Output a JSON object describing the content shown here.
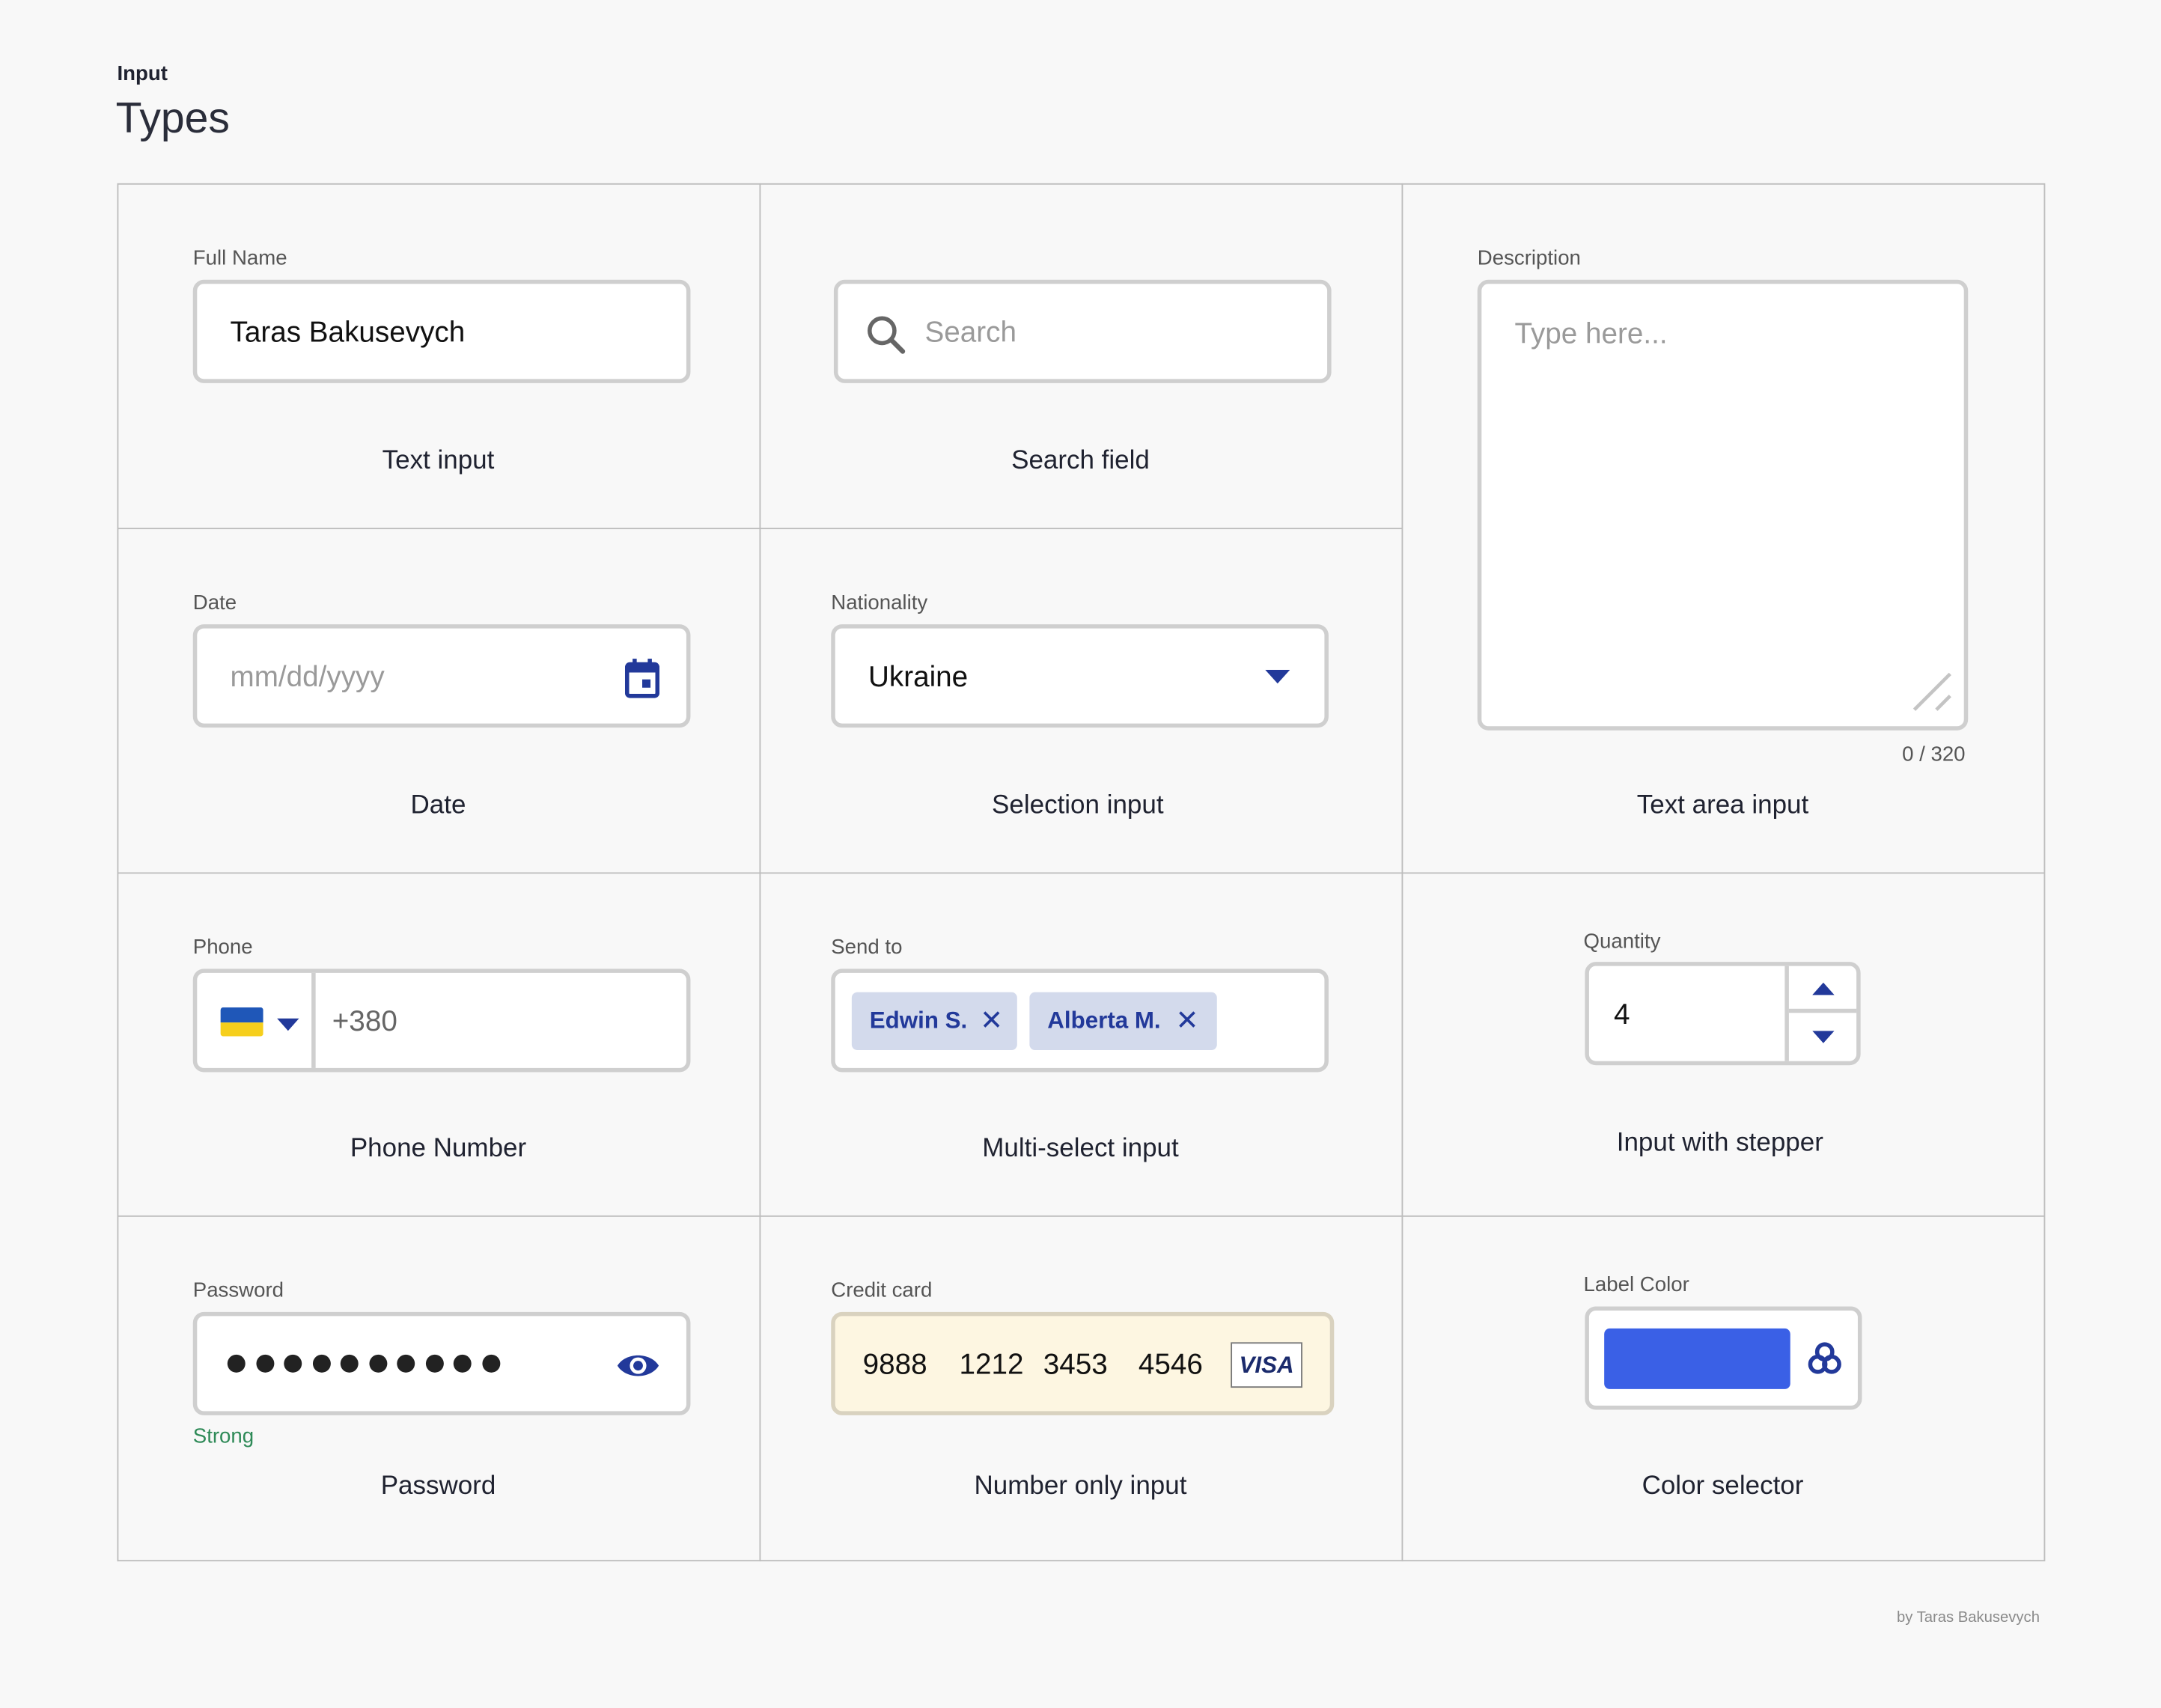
{
  "header": {
    "eyebrow": "Input",
    "title": "Types"
  },
  "cells": {
    "text_input": {
      "label": "Full Name",
      "value": "Taras Bakusevych",
      "caption": "Text input"
    },
    "search": {
      "placeholder": "Search",
      "caption": "Search field",
      "icon": "search-icon"
    },
    "textarea": {
      "label": "Description",
      "placeholder": "Type here...",
      "counter": "0 / 320",
      "caption": "Text area input"
    },
    "date": {
      "label": "Date",
      "placeholder": "mm/dd/yyyy",
      "caption": "Date",
      "icon": "calendar-icon"
    },
    "selection": {
      "label": "Nationality",
      "value": "Ukraine",
      "caption": "Selection input"
    },
    "phone": {
      "label": "Phone",
      "flag": "ukraine-flag",
      "value": "+380",
      "caption": "Phone Number"
    },
    "multiselect": {
      "label": "Send to",
      "chips": [
        "Edwin S.",
        "Alberta M."
      ],
      "caption": "Multi-select input"
    },
    "stepper": {
      "label": "Quantity",
      "value": "4",
      "caption": "Input with stepper"
    },
    "password": {
      "label": "Password",
      "length": 10,
      "strength": "Strong",
      "caption": "Password",
      "icon": "eye-icon"
    },
    "credit_card": {
      "label": "Credit card",
      "groups": [
        "9888",
        "1212",
        "3453",
        "4546"
      ],
      "brand": "VISA",
      "caption": "Number only input"
    },
    "color": {
      "label": "Label Color",
      "value": "#3a60e6",
      "caption": "Color selector",
      "icon": "color-palette-icon"
    }
  },
  "colors": {
    "accent": "#22399a",
    "strength_good": "#2e8a57",
    "card_bg": "#fdf6e1",
    "chip_bg": "#d3daec"
  },
  "footer": {
    "credit": "by Taras Bakusevych"
  }
}
